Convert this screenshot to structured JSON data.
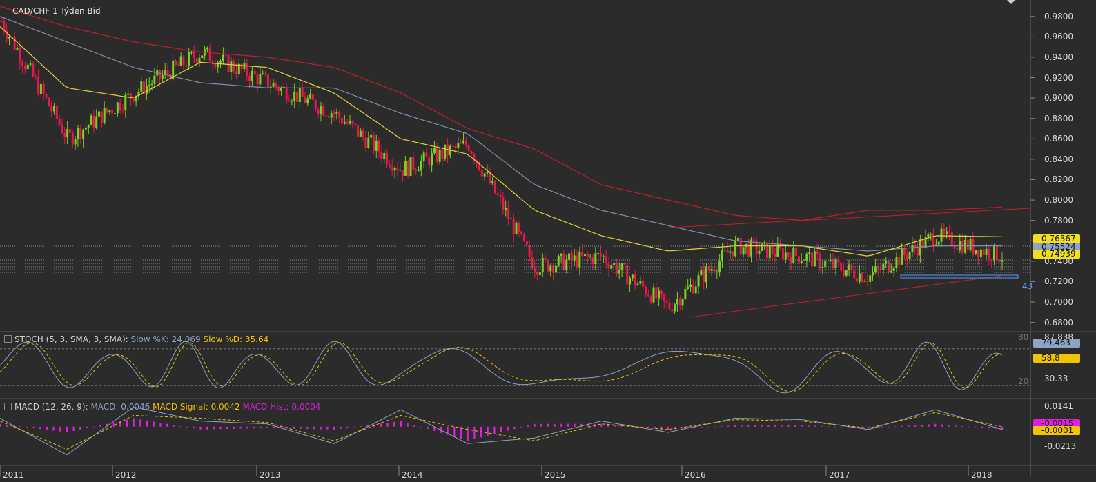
{
  "title": "CAD/CHF  1 Týden Bid",
  "colors": {
    "background": "#2b2b2b",
    "bull": "#7bd21c",
    "bear": "#e8174c",
    "sma_red": "#c0202a",
    "sma_blue": "#7f90b0",
    "sma_yellow": "#e6d23a",
    "macd_hist": "#e01ee0",
    "grid": "#3a3a3a"
  },
  "price_axis": [
    "0.9800",
    "0.9600",
    "0.9400",
    "0.9200",
    "0.9000",
    "0.8800",
    "0.8600",
    "0.8400",
    "0.8200",
    "0.8000",
    "0.7800",
    "0.7600",
    "0.7400",
    "0.7200",
    "0.7000",
    "0.6800"
  ],
  "price_tags": [
    {
      "label": "0.76367",
      "color": "#f2e01c"
    },
    {
      "label": "0.75524",
      "color": "#8fa3c6"
    },
    {
      "label": "0.74939",
      "color": "#f2e01c"
    }
  ],
  "x_labels": [
    "2011",
    "2012",
    "2013",
    "2014",
    "2015",
    "2016",
    "2017",
    "2018"
  ],
  "stoch": {
    "label": "STOCH (5, 3, SMA, 3, SMA): ",
    "k_label": "Slow %K: 24.069",
    "d_label": "Slow %D: 35.64",
    "axis": [
      "87.838",
      "80",
      "30.33",
      "20"
    ],
    "tags": [
      {
        "label": "79.463",
        "color": "#8fa3c6"
      },
      {
        "label": "58.8",
        "color": "#f2c300"
      }
    ]
  },
  "macd": {
    "label": "MACD (12, 26, 9): ",
    "macd_label": "MACD: 0.0046",
    "signal_label": "MACD Signal: 0.0042",
    "hist_label": "MACD Hist: 0.0004",
    "axis": [
      "0.0141",
      "-0.0213"
    ],
    "tags": [
      {
        "label": "-0.0015",
        "color": "#e01ee0"
      },
      {
        "label": "-0.0001",
        "color": "#f2c300"
      }
    ]
  },
  "annotation": "43",
  "chart_data": {
    "type": "candlestick",
    "title": "CAD/CHF  1 Týden Bid",
    "x": [
      "2011",
      "2011.5",
      "2012",
      "2012.5",
      "2013",
      "2013.5",
      "2014",
      "2014.5",
      "2015",
      "2015.5",
      "2016",
      "2016.5",
      "2017",
      "2017.5",
      "2018",
      "2018.2"
    ],
    "close": [
      0.975,
      0.86,
      0.905,
      0.945,
      0.915,
      0.885,
      0.83,
      0.855,
      0.735,
      0.745,
      0.695,
      0.755,
      0.745,
      0.725,
      0.765,
      0.745
    ],
    "ylim": [
      0.675,
      0.992
    ],
    "series": [
      {
        "name": "SMA red",
        "values": [
          0.99,
          0.97,
          0.955,
          0.945,
          0.94,
          0.93,
          0.905,
          0.87,
          0.85,
          0.815,
          0.8,
          0.785,
          0.78,
          0.79,
          0.79,
          0.793
        ]
      },
      {
        "name": "SMA blue",
        "values": [
          0.98,
          0.955,
          0.93,
          0.915,
          0.91,
          0.91,
          0.885,
          0.865,
          0.815,
          0.79,
          0.775,
          0.76,
          0.755,
          0.75,
          0.755,
          0.755
        ]
      },
      {
        "name": "SMA yellow",
        "values": [
          0.97,
          0.91,
          0.9,
          0.935,
          0.93,
          0.905,
          0.86,
          0.845,
          0.79,
          0.765,
          0.75,
          0.755,
          0.755,
          0.745,
          0.765,
          0.764
        ]
      }
    ],
    "stoch_range": [
      0,
      100
    ],
    "macd_range": [
      -0.027,
      0.018
    ]
  }
}
